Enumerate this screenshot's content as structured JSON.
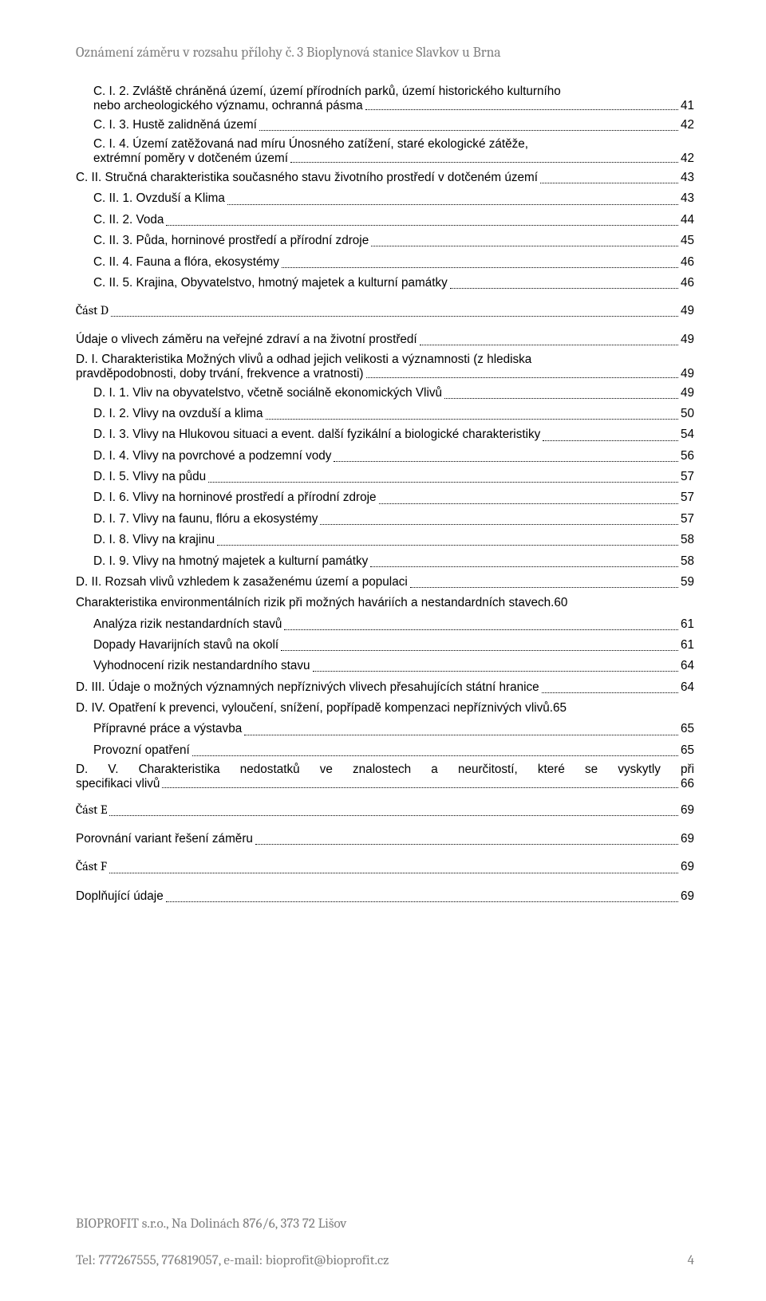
{
  "header_text": "Oznámení záměru v rozsahu přílohy č. 3 Bioplynová stanice Slavkov u Brna",
  "toc": [
    {
      "type": "multi",
      "indent": 1,
      "mt": false,
      "first": "C. I. 2. Zvláště chráněná území, území přírodních parků, území historického kulturního",
      "last": "nebo archeologického významu, ochranná pásma",
      "page": "41"
    },
    {
      "type": "line",
      "indent": 1,
      "label": "C. I. 3. Hustě zalidněná území",
      "page": "42"
    },
    {
      "type": "multi",
      "indent": 1,
      "mt": false,
      "first": "C. I. 4. Území zatěžovaná nad míru Únosného zatížení, staré ekologické zátěže,",
      "last": "extrémní poměry v dotčeném území",
      "page": "42"
    },
    {
      "type": "line",
      "indent": 0,
      "label": "C. II. Stručná charakteristika současného stavu životního prostředí v dotčeném území",
      "page": "43"
    },
    {
      "type": "line",
      "indent": 1,
      "label": "C. II. 1. Ovzduší a Klima",
      "page": "43"
    },
    {
      "type": "line",
      "indent": 1,
      "label": "C. II. 2. Voda",
      "page": "44"
    },
    {
      "type": "line",
      "indent": 1,
      "label": "C. II. 3. Půda, horninové prostředí a přírodní zdroje",
      "page": "45"
    },
    {
      "type": "line",
      "indent": 1,
      "label": "C. II. 4. Fauna a flóra, ekosystémy",
      "page": "46"
    },
    {
      "type": "line",
      "indent": 1,
      "label": "C. II. 5. Krajina, Obyvatelstvo, hmotný majetek a kulturní památky",
      "page": "46"
    },
    {
      "type": "part",
      "label": "Část D",
      "page": "49"
    },
    {
      "type": "line",
      "indent": 0,
      "mt": true,
      "label": "Údaje o vlivech záměru na veřejné zdraví a na životní prostředí",
      "page": "49"
    },
    {
      "type": "multi",
      "indent": 0,
      "mt": true,
      "first": "D. I. Charakteristika Možných vlivů a odhad jejich velikosti a významnosti (z hlediska",
      "last": "pravděpodobnosti, doby trvání, frekvence a vratnosti)",
      "page": "49"
    },
    {
      "type": "line",
      "indent": 1,
      "label": "D. I. 1. Vliv na obyvatelstvo, včetně sociálně ekonomických Vlivů",
      "page": "49"
    },
    {
      "type": "line",
      "indent": 1,
      "label": "D. I. 2. Vlivy na ovzduší a klima",
      "page": "50"
    },
    {
      "type": "line",
      "indent": 1,
      "label": "D. I. 3. Vlivy na Hlukovou situaci a event. další fyzikální a biologické charakteristiky",
      "page": "54"
    },
    {
      "type": "line",
      "indent": 1,
      "label": "D. I. 4. Vlivy na povrchové a podzemní vody",
      "page": "56"
    },
    {
      "type": "line",
      "indent": 1,
      "label": "D. I. 5. Vlivy na půdu",
      "page": "57"
    },
    {
      "type": "line",
      "indent": 1,
      "label": "D. I. 6. Vlivy na horninové prostředí a přírodní zdroje",
      "page": "57"
    },
    {
      "type": "line",
      "indent": 1,
      "label": "D. I. 7. Vlivy na faunu, flóru a ekosystémy",
      "page": "57"
    },
    {
      "type": "line",
      "indent": 1,
      "label": "D. I. 8. Vlivy na krajinu",
      "page": "58"
    },
    {
      "type": "line",
      "indent": 1,
      "label": "D. I. 9. Vlivy na hmotný majetek a kulturní památky",
      "page": "58"
    },
    {
      "type": "line",
      "indent": 0,
      "label": "D. II. Rozsah vlivů vzhledem k zasaženému území a populaci",
      "page": "59"
    },
    {
      "type": "line-tight",
      "indent": 0,
      "label": "Charakteristika environmentálních rizik při možných haváriích a nestandardních stavech.",
      "page": "60"
    },
    {
      "type": "line",
      "indent": 1,
      "label": "Analýza rizik nestandardních stavů",
      "page": "61"
    },
    {
      "type": "line",
      "indent": 1,
      "label": "Dopady Havarijních stavů na okolí",
      "page": "61"
    },
    {
      "type": "line",
      "indent": 1,
      "label": "Vyhodnocení rizik nestandardního stavu",
      "page": "64"
    },
    {
      "type": "line",
      "indent": 0,
      "label": "D. III. Údaje o možných významných nepříznivých vlivech přesahujících státní hranice",
      "page": "64"
    },
    {
      "type": "line-tight",
      "indent": 0,
      "label": "D. IV. Opatření k prevenci, vyloučení, snížení, popřípadě kompenzaci nepříznivých vlivů.",
      "page": "65"
    },
    {
      "type": "line",
      "indent": 1,
      "label": "Přípravné práce a výstavba",
      "page": "65"
    },
    {
      "type": "line",
      "indent": 1,
      "label": "Provozní opatření",
      "page": "65"
    },
    {
      "type": "multi",
      "indent": 0,
      "mt": false,
      "justify": true,
      "first": "D. V. Charakteristika nedostatků ve znalostech a neurčitostí, které se vyskytly při",
      "last": "specifikaci vlivů",
      "page": "66"
    },
    {
      "type": "part",
      "label": "Část E",
      "page": "69"
    },
    {
      "type": "line",
      "indent": 0,
      "mt": true,
      "label": "Porovnání variant řešení záměru",
      "page": "69"
    },
    {
      "type": "part",
      "label": "Část F",
      "page": "69"
    },
    {
      "type": "line",
      "indent": 0,
      "mt": true,
      "label": "Doplňující údaje",
      "page": "69"
    }
  ],
  "footer": {
    "line1": "BIOPROFIT s.r.o., Na Dolinách 876/6, 373 72 Lišov",
    "line2": "Tel: 777267555, 776819057, e-mail: bioprofit@bioprofit.cz",
    "page_number": "4"
  },
  "colors": {
    "header_gray": "#7f7f7f",
    "text": "#000000",
    "background": "#ffffff"
  }
}
